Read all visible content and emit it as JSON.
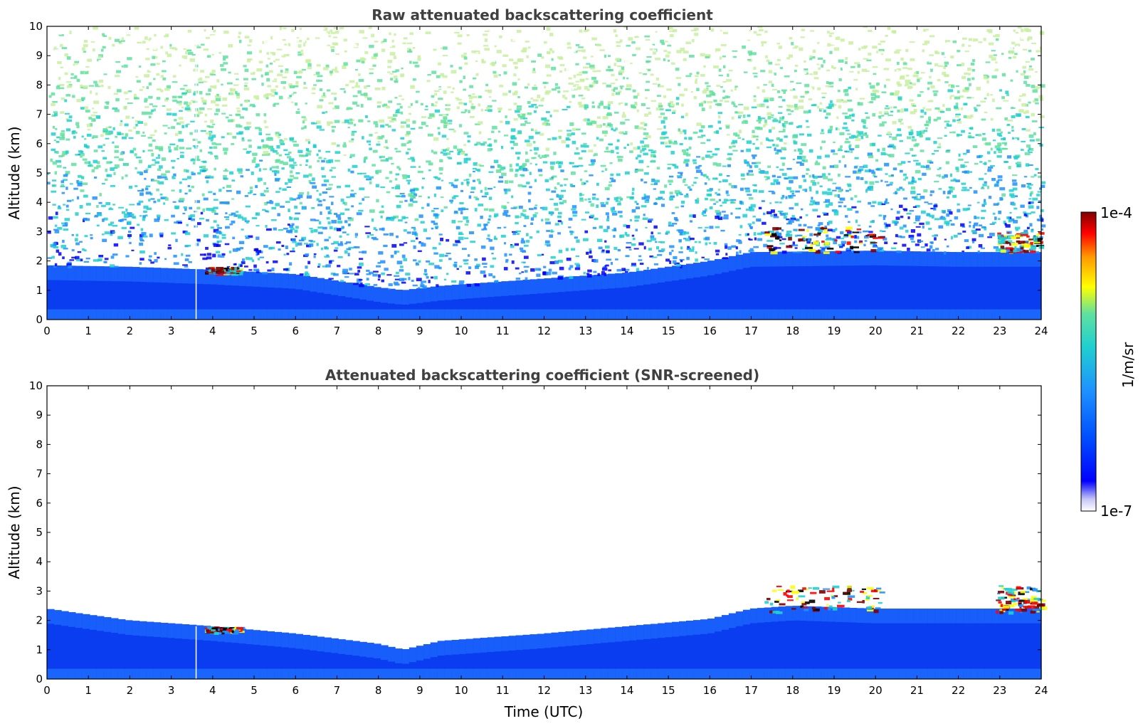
{
  "colors": {
    "scale": [
      "#ffffff",
      "#c6c6f6",
      "#0000ff",
      "#0050ff",
      "#1e90ff",
      "#20d0d0",
      "#60e0a0",
      "#ffff00",
      "#ff9900",
      "#ff0000",
      "#800000"
    ],
    "background": "#ffffff"
  },
  "chart_data": [
    {
      "type": "heatmap",
      "title": "Raw attenuated backscattering coefficient",
      "xlabel": "",
      "ylabel": "Altitude (km)",
      "xlim": [
        0,
        24
      ],
      "ylim": [
        0,
        10
      ],
      "xticks": [
        0,
        1,
        2,
        3,
        4,
        5,
        6,
        7,
        8,
        9,
        10,
        11,
        12,
        13,
        14,
        15,
        16,
        17,
        18,
        19,
        20,
        21,
        22,
        23,
        24
      ],
      "yticks": [
        0,
        1,
        2,
        3,
        4,
        5,
        6,
        7,
        8,
        9,
        10
      ],
      "grid": false,
      "layer_top_km": [
        [
          0,
          1.85
        ],
        [
          2,
          1.8
        ],
        [
          4,
          1.7
        ],
        [
          6,
          1.55
        ],
        [
          8,
          1.1
        ],
        [
          8.6,
          1.0
        ],
        [
          9.5,
          1.15
        ],
        [
          12,
          1.4
        ],
        [
          14,
          1.6
        ],
        [
          16,
          2.0
        ],
        [
          17,
          2.3
        ],
        [
          20,
          2.35
        ],
        [
          22,
          2.3
        ],
        [
          24,
          2.3
        ]
      ],
      "cloud_features": [
        {
          "x_range": [
            17.3,
            20.1
          ],
          "alt_range_km": [
            2.3,
            3.2
          ]
        },
        {
          "x_range": [
            22.9,
            24.0
          ],
          "alt_range_km": [
            2.3,
            3.0
          ]
        },
        {
          "x_range": [
            3.8,
            4.6
          ],
          "alt_range_km": [
            1.6,
            1.8
          ]
        }
      ],
      "gap_at_hour": 3.6
    },
    {
      "type": "heatmap",
      "title": "Attenuated backscattering coefficient (SNR-screened)",
      "xlabel": "Time (UTC)",
      "ylabel": "Altitude (km)",
      "xlim": [
        0,
        24
      ],
      "ylim": [
        0,
        10
      ],
      "xticks": [
        0,
        1,
        2,
        3,
        4,
        5,
        6,
        7,
        8,
        9,
        10,
        11,
        12,
        13,
        14,
        15,
        16,
        17,
        18,
        19,
        20,
        21,
        22,
        23,
        24
      ],
      "yticks": [
        0,
        1,
        2,
        3,
        4,
        5,
        6,
        7,
        8,
        9,
        10
      ],
      "grid": false,
      "layer_top_km": [
        [
          0,
          2.4
        ],
        [
          2,
          2.0
        ],
        [
          4,
          1.8
        ],
        [
          6,
          1.55
        ],
        [
          8,
          1.2
        ],
        [
          8.6,
          1.0
        ],
        [
          9.5,
          1.3
        ],
        [
          12,
          1.55
        ],
        [
          14,
          1.8
        ],
        [
          16,
          2.05
        ],
        [
          17,
          2.4
        ],
        [
          18,
          2.5
        ],
        [
          20,
          2.4
        ],
        [
          22,
          2.4
        ],
        [
          24,
          2.4
        ]
      ],
      "cloud_features": [
        {
          "x_range": [
            17.3,
            20.1
          ],
          "alt_range_km": [
            2.3,
            3.2
          ]
        },
        {
          "x_range": [
            22.9,
            24.0
          ],
          "alt_range_km": [
            2.3,
            3.2
          ]
        },
        {
          "x_range": [
            3.8,
            4.6
          ],
          "alt_range_km": [
            1.6,
            1.8
          ]
        }
      ],
      "gap_at_hour": 3.6
    }
  ],
  "colorbar": {
    "label": "1/m/sr",
    "max_label": "1e-4",
    "min_label": "1e-7",
    "scale": "log",
    "range": [
      1e-07,
      0.0001
    ]
  }
}
